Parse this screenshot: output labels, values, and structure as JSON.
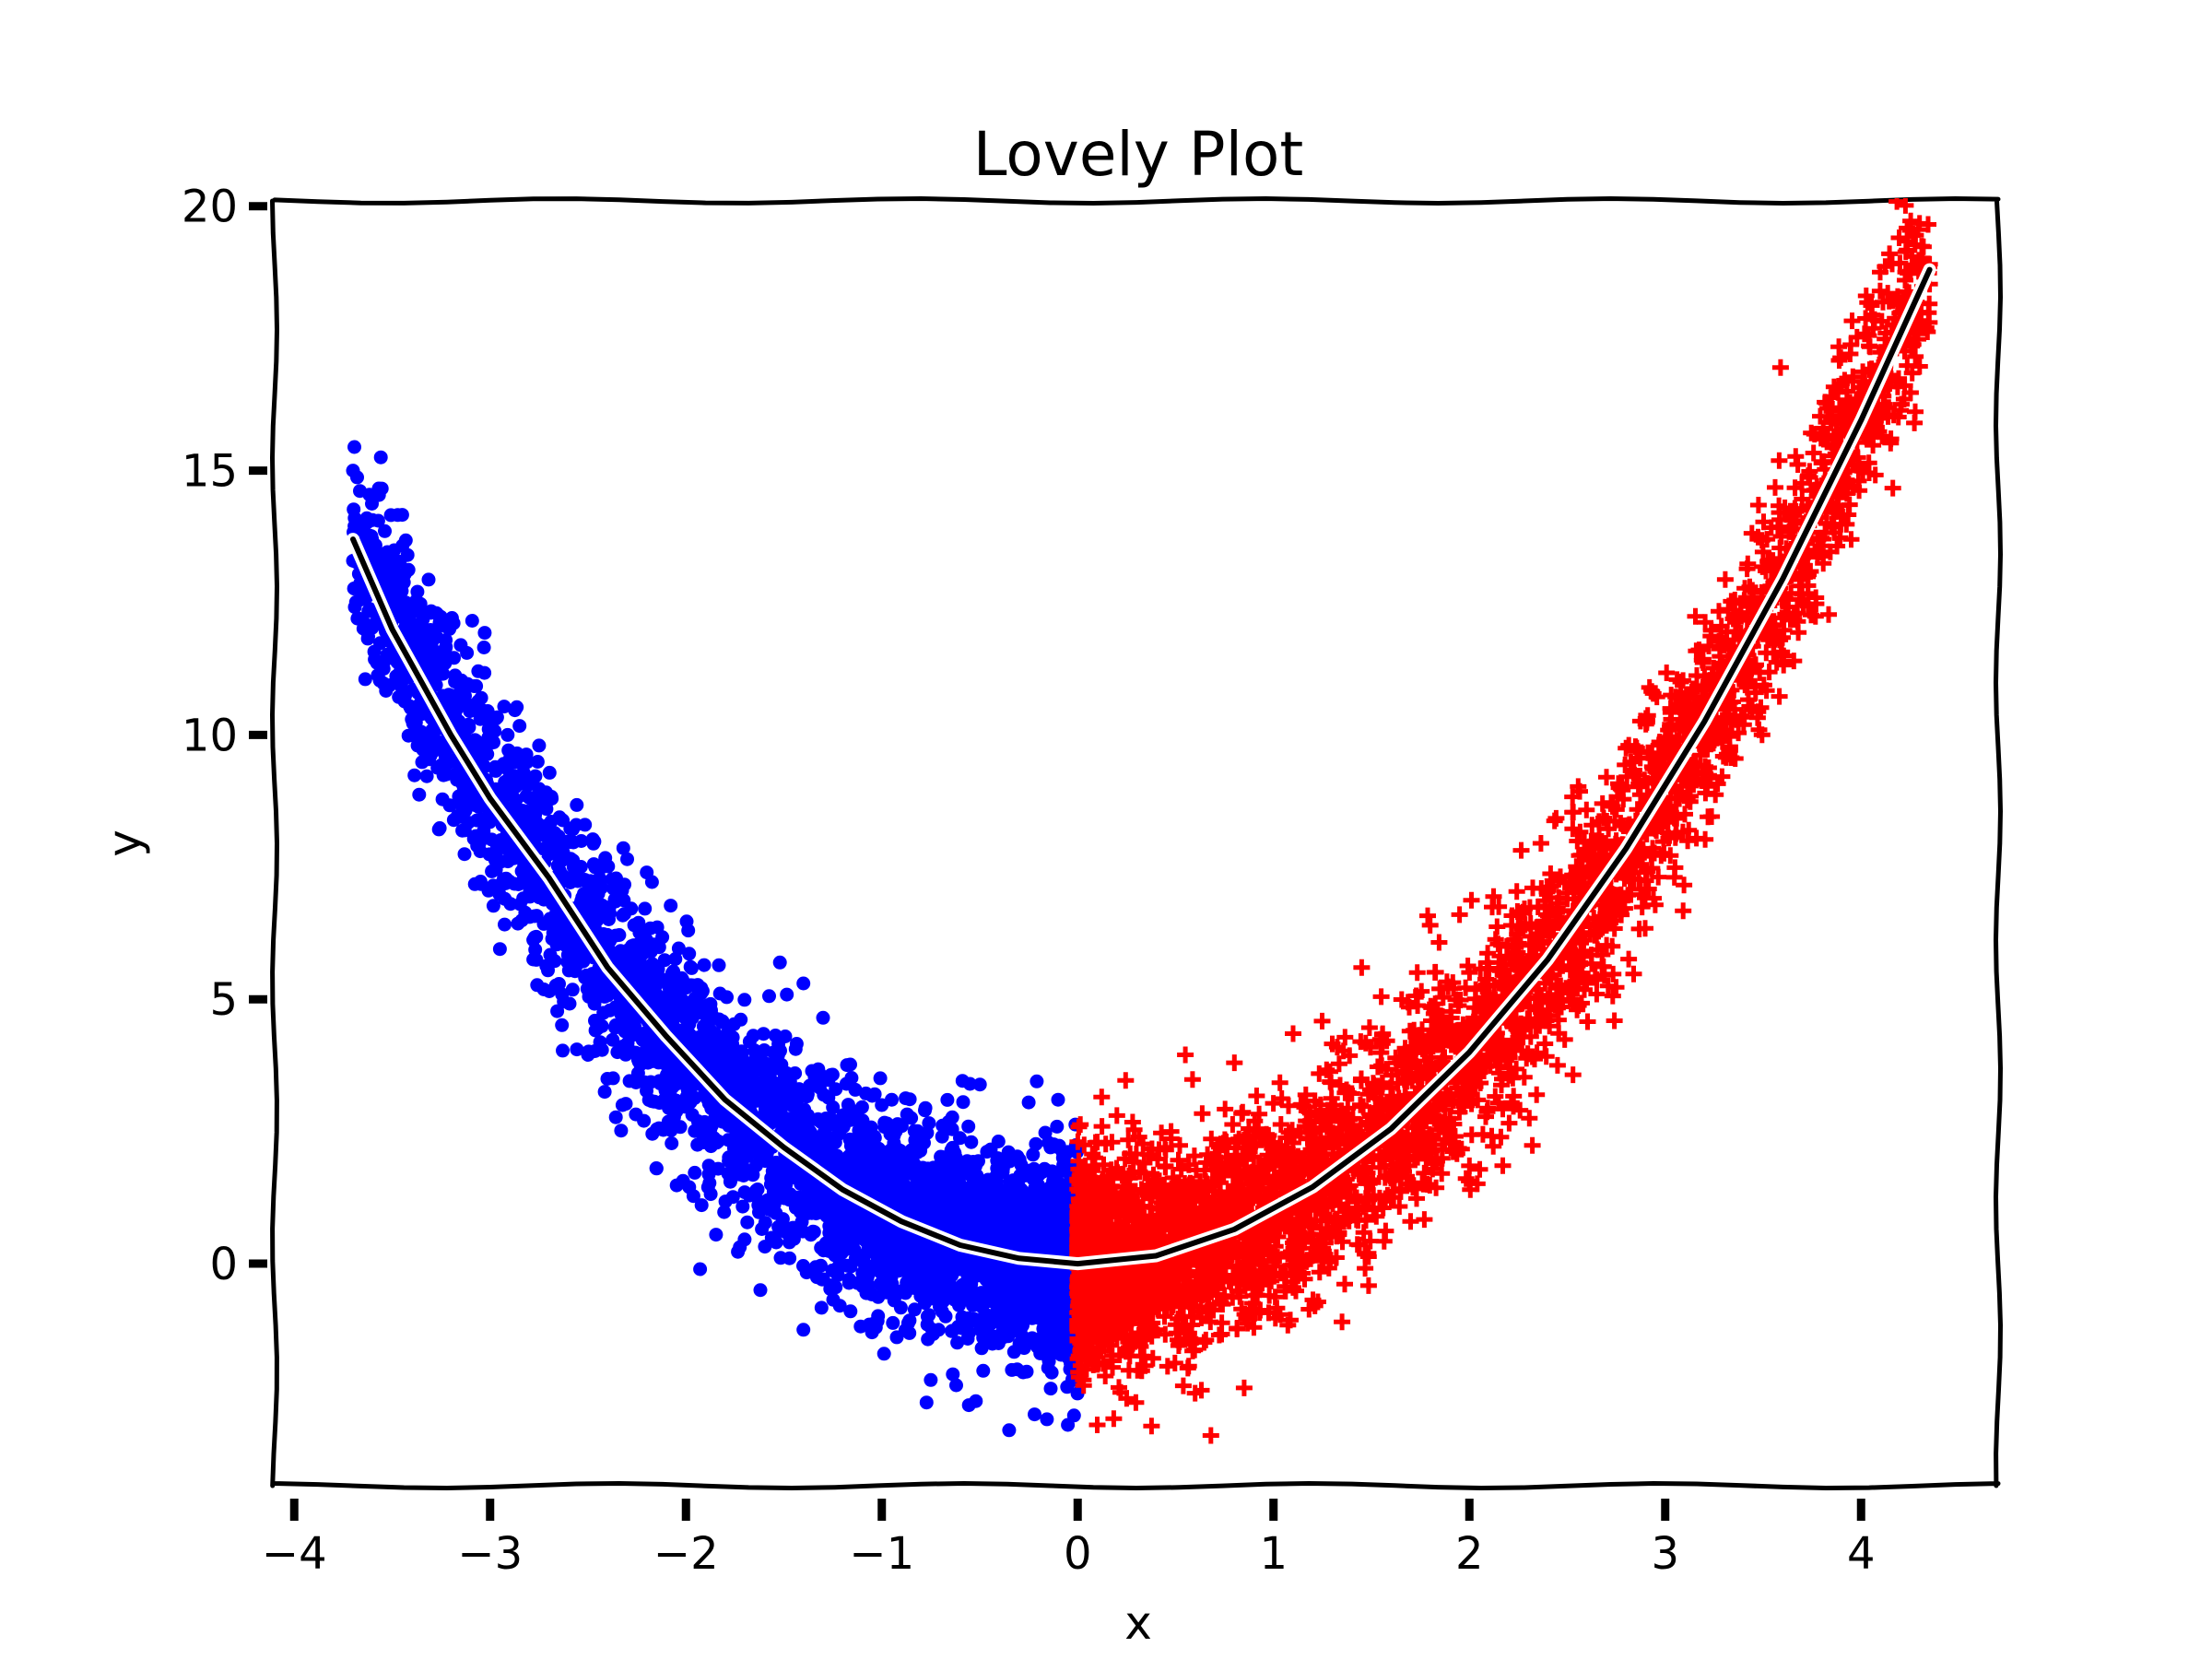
{
  "chart_data": {
    "type": "scatter",
    "title": "Lovely Plot",
    "xlabel": "x",
    "ylabel": "y",
    "xlim": [
      -4.1,
      4.7
    ],
    "ylim": [
      -4.2,
      20.1
    ],
    "xticks": [
      -4,
      -3,
      -2,
      -1,
      0,
      1,
      2,
      3,
      4
    ],
    "xtick_labels": [
      "−4",
      "−3",
      "−2",
      "−1",
      "0",
      "1",
      "2",
      "3",
      "4"
    ],
    "yticks": [
      0,
      5,
      10,
      15,
      20
    ],
    "ytick_labels": [
      "0",
      "5",
      "10",
      "15",
      "20"
    ],
    "grid": false,
    "style": "xkcd",
    "series": [
      {
        "marker": "circle",
        "color": "#0000ff",
        "x_range": [
          -3.7,
          0.0
        ],
        "trend": "y = x^2 + noise",
        "noise_sd": 1.0,
        "points": [
          [
            -3.7,
            15.0
          ],
          [
            -3.62,
            13.5
          ],
          [
            -3.5,
            12.3
          ],
          [
            -3.46,
            11.9
          ],
          [
            -3.15,
            11.7
          ],
          [
            -3.35,
            10.4
          ],
          [
            -3.05,
            10.3
          ],
          [
            -3.37,
            9.8
          ],
          [
            -2.75,
            9.8
          ],
          [
            -3.15,
            8.45
          ],
          [
            -3.05,
            7.8
          ],
          [
            -2.95,
            5.95
          ],
          [
            -2.3,
            7.65
          ],
          [
            -2.2,
            7.4
          ],
          [
            -2.5,
            3.95
          ],
          [
            -2.35,
            4.0
          ],
          [
            -1.85,
            4.35
          ],
          [
            -1.4,
            5.3
          ],
          [
            -1.3,
            4.65
          ],
          [
            -1.7,
            1.35
          ],
          [
            -2.15,
            1.8
          ],
          [
            -1.62,
            -0.5
          ],
          [
            -1.4,
            -1.25
          ],
          [
            -1.05,
            -1.3
          ],
          [
            -0.75,
            -2.2
          ],
          [
            -0.62,
            -2.3
          ],
          [
            -0.52,
            -2.6
          ],
          [
            -0.35,
            -3.15
          ],
          [
            -0.22,
            -2.85
          ],
          [
            -0.05,
            -3.05
          ],
          [
            -0.55,
            3.4
          ],
          [
            -0.25,
            3.05
          ],
          [
            -0.1,
            3.1
          ],
          [
            -0.78,
            2.9
          ],
          [
            -1.0,
            3.0
          ]
        ]
      },
      {
        "marker": "plus",
        "color": "#ff0000",
        "x_range": [
          0.0,
          4.35
        ],
        "trend": "y = x^2 + noise",
        "noise_sd": 1.0,
        "points": [
          [
            4.35,
            18.9
          ],
          [
            4.15,
            16.8
          ],
          [
            3.95,
            15.8
          ],
          [
            3.55,
            13.3
          ],
          [
            3.3,
            11.7
          ],
          [
            3.32,
            11.4
          ],
          [
            3.2,
            9.8
          ],
          [
            3.0,
            9.95
          ],
          [
            3.1,
            8.5
          ],
          [
            3.12,
            8.2
          ],
          [
            2.8,
            9.75
          ],
          [
            2.7,
            9.2
          ],
          [
            2.75,
            8.0
          ],
          [
            2.5,
            6.9
          ],
          [
            2.9,
            7.4
          ],
          [
            2.15,
            6.75
          ],
          [
            1.95,
            6.6
          ],
          [
            1.8,
            6.4
          ],
          [
            1.45,
            5.6
          ],
          [
            1.55,
            5.05
          ],
          [
            1.1,
            4.35
          ],
          [
            0.55,
            3.95
          ],
          [
            0.8,
            3.8
          ],
          [
            0.2,
            2.8
          ],
          [
            0.1,
            2.3
          ],
          [
            0.68,
            -3.25
          ],
          [
            0.1,
            -3.05
          ],
          [
            0.85,
            -2.35
          ],
          [
            0.6,
            -2.45
          ],
          [
            0.25,
            -2.55
          ],
          [
            2.65,
            5.1
          ],
          [
            2.55,
            4.8
          ],
          [
            2.45,
            3.75
          ],
          [
            2.0,
            1.85
          ],
          [
            1.7,
            0.8
          ],
          [
            1.35,
            -1.1
          ]
        ]
      }
    ],
    "fit_line": {
      "color": "#000000",
      "x": [
        -3.7,
        -3.5,
        -3.2,
        -3.0,
        -2.7,
        -2.4,
        -2.1,
        -1.8,
        -1.5,
        -1.2,
        -0.9,
        -0.6,
        -0.3,
        0.0,
        0.4,
        0.8,
        1.2,
        1.6,
        2.0,
        2.4,
        2.8,
        3.2,
        3.6,
        4.0,
        4.35
      ],
      "y": [
        13.7,
        12.0,
        10.0,
        8.8,
        7.3,
        5.6,
        4.3,
        3.1,
        2.2,
        1.4,
        0.8,
        0.35,
        0.1,
        0.0,
        0.15,
        0.65,
        1.45,
        2.55,
        4.0,
        5.75,
        7.85,
        10.25,
        12.95,
        15.95,
        18.8
      ]
    }
  }
}
